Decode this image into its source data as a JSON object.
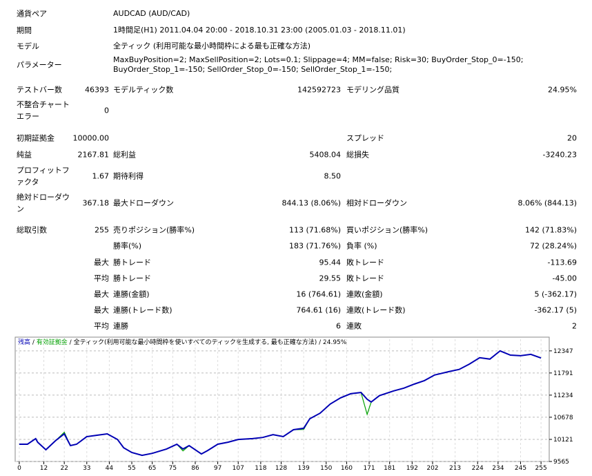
{
  "report": {
    "settings": [
      {
        "label": "通貨ペア",
        "value": "AUDCAD (AUD/CAD)"
      },
      {
        "label": "期間",
        "value": "1時間足(H1) 2011.04.04 20:00 - 2018.10.31 23:00 (2005.01.03 - 2018.11.01)"
      },
      {
        "label": "モデル",
        "value": "全ティック (利用可能な最小時間枠による最も正確な方法)"
      },
      {
        "label": "パラメーター",
        "value": "MaxBuyPosition=2; MaxSellPosition=2; Lots=0.1; Slippage=4; MM=false; Risk=30; BuyOrder_Stop_0=-150; BuyOrder_Stop_1=-150; SellOrder_Stop_0=-150; SellOrder_Stop_1=-150;"
      }
    ],
    "stats": [
      {
        "c1": {
          "label": "テストバー数",
          "value": "46393"
        },
        "c2": {
          "label": "モデルティック数",
          "value": "142592723"
        },
        "c3": {
          "label": "モデリング品質",
          "value": "24.95%"
        }
      },
      {
        "c1": {
          "label": "不整合チャートエラー",
          "value": "0"
        }
      },
      {
        "c1": {
          "label": "初期証拠金",
          "value": "10000.00"
        },
        "c3": {
          "label": "スプレッド",
          "value": "20"
        }
      },
      {
        "c1": {
          "label": "純益",
          "value": "2167.81"
        },
        "c2": {
          "label": "総利益",
          "value": "5408.04"
        },
        "c3": {
          "label": "総損失",
          "value": "-3240.23"
        }
      },
      {
        "c1": {
          "label": "プロフィットファクタ",
          "value": "1.67"
        },
        "c2": {
          "label": "期待利得",
          "value": "8.50"
        }
      },
      {
        "c1": {
          "label": "絶対ドローダウン",
          "value": "367.18"
        },
        "c2": {
          "label": "最大ドローダウン",
          "value": "844.13 (8.06%)"
        },
        "c3": {
          "label": "相対ドローダウン",
          "value": "8.06% (844.13)"
        }
      },
      {
        "c1": {
          "label": "総取引数",
          "value": "255"
        },
        "c2": {
          "label": "売りポジション(勝率%)",
          "value": "113 (71.68%)"
        },
        "c3": {
          "label": "買いポジション(勝率%)",
          "value": "142 (71.83%)"
        }
      },
      {
        "c2": {
          "label": "勝率(%)",
          "value": "183 (71.76%)"
        },
        "c3": {
          "label": "負率 (%)",
          "value": "72 (28.24%)"
        }
      },
      {
        "c1": {
          "value": "最大"
        },
        "c2": {
          "label": "勝トレード",
          "value": "95.44"
        },
        "c3": {
          "label": "敗トレード",
          "value": "-113.69"
        }
      },
      {
        "c1": {
          "value": "平均"
        },
        "c2": {
          "label": "勝トレード",
          "value": "29.55"
        },
        "c3": {
          "label": "敗トレード",
          "value": "-45.00"
        }
      },
      {
        "c1": {
          "value": "最大"
        },
        "c2": {
          "label": "連勝(金額)",
          "value": "16 (764.61)"
        },
        "c3": {
          "label": "連敗(金額)",
          "value": "5 (-362.17)"
        }
      },
      {
        "c1": {
          "value": "最大"
        },
        "c2": {
          "label": "連勝(トレード数)",
          "value": "764.61 (16)"
        },
        "c3": {
          "label": "連敗(トレード数)",
          "value": "-362.17 (5)"
        }
      },
      {
        "c1": {
          "value": "平均"
        },
        "c2": {
          "label": "連勝",
          "value": "6"
        },
        "c3": {
          "label": "連敗",
          "value": "2"
        }
      }
    ]
  },
  "chart_data": {
    "type": "line",
    "subtitle": "全ティック(利用可能な最小時間枠を使いすべてのティックを生成する, 最も正確な方法)",
    "annotation": "24.95%",
    "x": [
      0,
      4,
      8,
      9,
      13,
      18,
      22,
      25,
      28,
      33,
      38,
      43,
      48,
      51,
      55,
      60,
      65,
      72,
      77,
      80,
      83,
      89,
      92,
      97,
      102,
      107,
      114,
      119,
      124,
      129,
      134,
      139,
      142,
      147,
      152,
      157,
      162,
      167,
      170,
      172,
      176,
      183,
      188,
      193,
      198,
      203,
      210,
      215,
      220,
      225,
      230,
      235,
      240,
      245,
      250,
      255
    ],
    "series": [
      {
        "name": "残高",
        "color": "#0000b4",
        "values": [
          10000,
          10000,
          10140,
          10050,
          9860,
          10100,
          10260,
          9965,
          10000,
          10190,
          10225,
          10260,
          10120,
          9910,
          9790,
          9720,
          9770,
          9880,
          10000,
          9880,
          9965,
          9755,
          9840,
          10000,
          10050,
          10120,
          10140,
          10170,
          10240,
          10190,
          10365,
          10400,
          10640,
          10780,
          11010,
          11165,
          11270,
          11300,
          11130,
          11060,
          11220,
          11340,
          11410,
          11510,
          11600,
          11740,
          11825,
          11880,
          12015,
          12175,
          12140,
          12347,
          12240,
          12225,
          12260,
          12168
        ]
      },
      {
        "name": "有効証拠金",
        "color": "#00a000",
        "values": [
          10000,
          10000,
          10140,
          10050,
          9860,
          10100,
          10300,
          9965,
          10000,
          10190,
          10225,
          10260,
          10120,
          9910,
          9790,
          9720,
          9770,
          9880,
          10000,
          9830,
          9965,
          9755,
          9840,
          10000,
          10050,
          10120,
          10140,
          10170,
          10240,
          10190,
          10365,
          10370,
          10640,
          10780,
          11010,
          11165,
          11270,
          11300,
          10750,
          11060,
          11220,
          11340,
          11410,
          11510,
          11600,
          11740,
          11825,
          11880,
          12015,
          12175,
          12140,
          12347,
          12240,
          12225,
          12260,
          12168
        ]
      }
    ],
    "xlim": [
      -2,
      259
    ],
    "xticks": [
      0,
      12,
      22,
      33,
      44,
      55,
      65,
      75,
      86,
      97,
      107,
      118,
      128,
      139,
      150,
      160,
      171,
      181,
      192,
      202,
      213,
      224,
      234,
      245,
      255
    ],
    "ylim": [
      9565,
      12640
    ],
    "yticks": [
      9565,
      10121,
      10678,
      11234,
      11791,
      12347
    ],
    "grid": true
  }
}
